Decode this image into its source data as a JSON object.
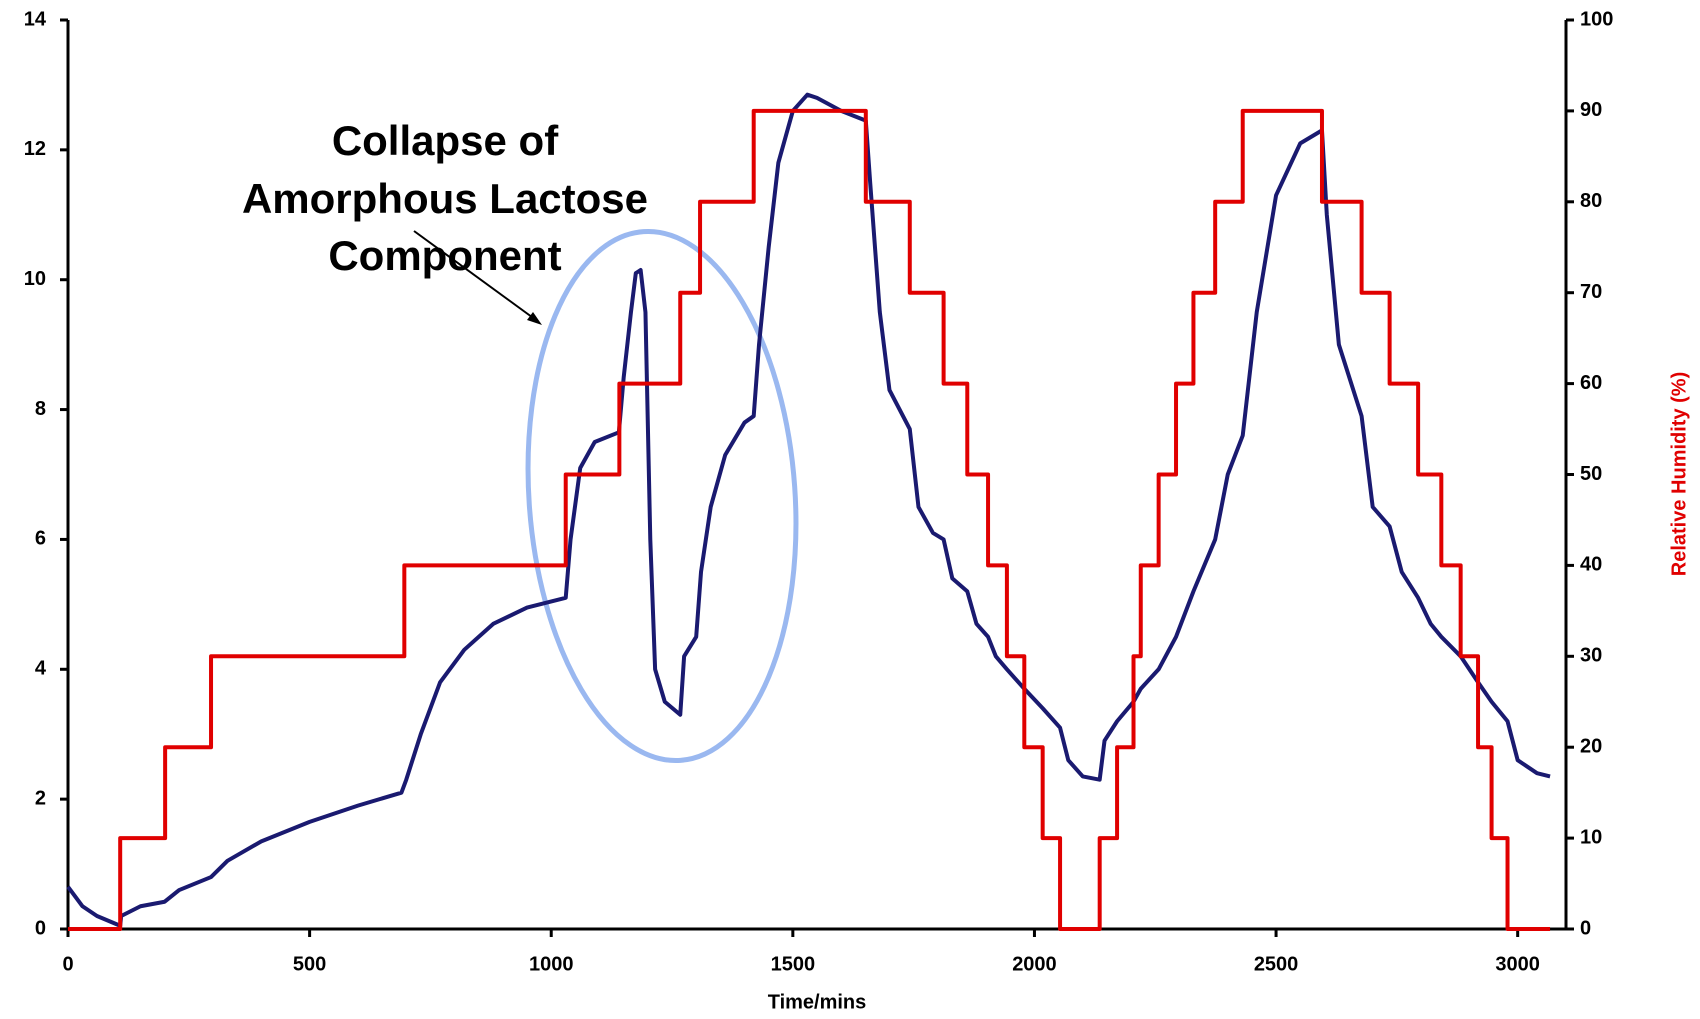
{
  "chart_data": {
    "type": "line",
    "annotation": [
      "Collapse of",
      "Amorphous Lactose",
      "Component"
    ],
    "xlabel": "Time/mins",
    "y2label": "Relative Humidity (%)",
    "xlim": [
      0,
      3100
    ],
    "xticks": [
      0,
      500,
      1000,
      1500,
      2000,
      2500,
      3000
    ],
    "ylim": [
      0,
      14
    ],
    "yticks": [
      0,
      2,
      4,
      6,
      8,
      10,
      12,
      14
    ],
    "y2lim": [
      0,
      100
    ],
    "y2ticks": [
      0,
      10,
      20,
      30,
      40,
      50,
      60,
      70,
      80,
      90,
      100
    ],
    "series": [
      {
        "color": "#1a1a70",
        "x": [
          0,
          30,
          60,
          108,
          110,
          150,
          200,
          230,
          296,
          330,
          400,
          500,
          600,
          690,
          700,
          730,
          770,
          820,
          880,
          950,
          1030,
          1040,
          1060,
          1090,
          1140,
          1150,
          1165,
          1175,
          1185,
          1195,
          1205,
          1215,
          1235,
          1267,
          1275,
          1300,
          1310,
          1330,
          1360,
          1400,
          1419,
          1430,
          1450,
          1470,
          1500,
          1530,
          1550,
          1600,
          1651,
          1660,
          1680,
          1700,
          1742,
          1760,
          1790,
          1812,
          1830,
          1861,
          1880,
          1904,
          1920,
          1943,
          1979,
          2017,
          2053,
          2070,
          2100,
          2135,
          2145,
          2171,
          2205,
          2220,
          2257,
          2293,
          2329,
          2374,
          2400,
          2431,
          2460,
          2500,
          2550,
          2595,
          2605,
          2630,
          2677,
          2700,
          2735,
          2760,
          2794,
          2820,
          2842,
          2882,
          2918,
          2946,
          2979,
          3000,
          3040,
          3067
        ],
        "values": [
          0.65,
          0.35,
          0.2,
          0.05,
          0.2,
          0.35,
          0.42,
          0.6,
          0.8,
          1.05,
          1.35,
          1.65,
          1.9,
          2.1,
          2.3,
          3.0,
          3.8,
          4.3,
          4.7,
          4.95,
          5.1,
          6.0,
          7.1,
          7.5,
          7.65,
          8.5,
          9.5,
          10.1,
          10.15,
          9.5,
          6.0,
          4.0,
          3.5,
          3.3,
          4.2,
          4.5,
          5.5,
          6.5,
          7.3,
          7.8,
          7.9,
          9.0,
          10.5,
          11.8,
          12.6,
          12.85,
          12.8,
          12.6,
          12.45,
          11.5,
          9.5,
          8.3,
          7.7,
          6.5,
          6.1,
          6.0,
          5.4,
          5.2,
          4.7,
          4.5,
          4.2,
          4.0,
          3.7,
          3.4,
          3.1,
          2.6,
          2.35,
          2.3,
          2.9,
          3.2,
          3.5,
          3.7,
          4.0,
          4.5,
          5.2,
          6.0,
          7.0,
          7.6,
          9.5,
          11.3,
          12.1,
          12.3,
          11.0,
          9.0,
          7.9,
          6.5,
          6.2,
          5.5,
          5.1,
          4.7,
          4.5,
          4.2,
          3.8,
          3.5,
          3.2,
          2.6,
          2.4,
          2.35
        ]
      },
      {
        "color": "#e00000",
        "axis": "y2",
        "x": [
          0,
          108,
          108,
          201,
          201,
          296,
          296,
          696,
          696,
          1030,
          1030,
          1141,
          1141,
          1267,
          1267,
          1308,
          1308,
          1419,
          1419,
          1651,
          1651,
          1742,
          1742,
          1812,
          1812,
          1861,
          1861,
          1904,
          1904,
          1943,
          1943,
          1979,
          1979,
          2017,
          2017,
          2053,
          2053,
          2135,
          2135,
          2171,
          2171,
          2205,
          2205,
          2220,
          2220,
          2257,
          2257,
          2293,
          2293,
          2329,
          2329,
          2374,
          2374,
          2431,
          2431,
          2595,
          2595,
          2677,
          2677,
          2735,
          2735,
          2794,
          2794,
          2842,
          2842,
          2882,
          2882,
          2918,
          2918,
          2946,
          2946,
          2979,
          2979,
          3067
        ],
        "values": [
          0,
          0,
          10,
          10,
          20,
          20,
          30,
          30,
          40,
          40,
          50,
          50,
          60,
          60,
          70,
          70,
          80,
          80,
          90,
          90,
          80,
          80,
          70,
          70,
          60,
          60,
          50,
          50,
          40,
          40,
          30,
          30,
          20,
          20,
          10,
          10,
          0,
          0,
          10,
          10,
          20,
          20,
          30,
          30,
          40,
          40,
          50,
          50,
          60,
          60,
          70,
          70,
          80,
          80,
          90,
          90,
          80,
          80,
          70,
          70,
          60,
          60,
          50,
          50,
          40,
          40,
          30,
          30,
          20,
          20,
          10,
          10,
          0,
          0
        ]
      }
    ]
  }
}
